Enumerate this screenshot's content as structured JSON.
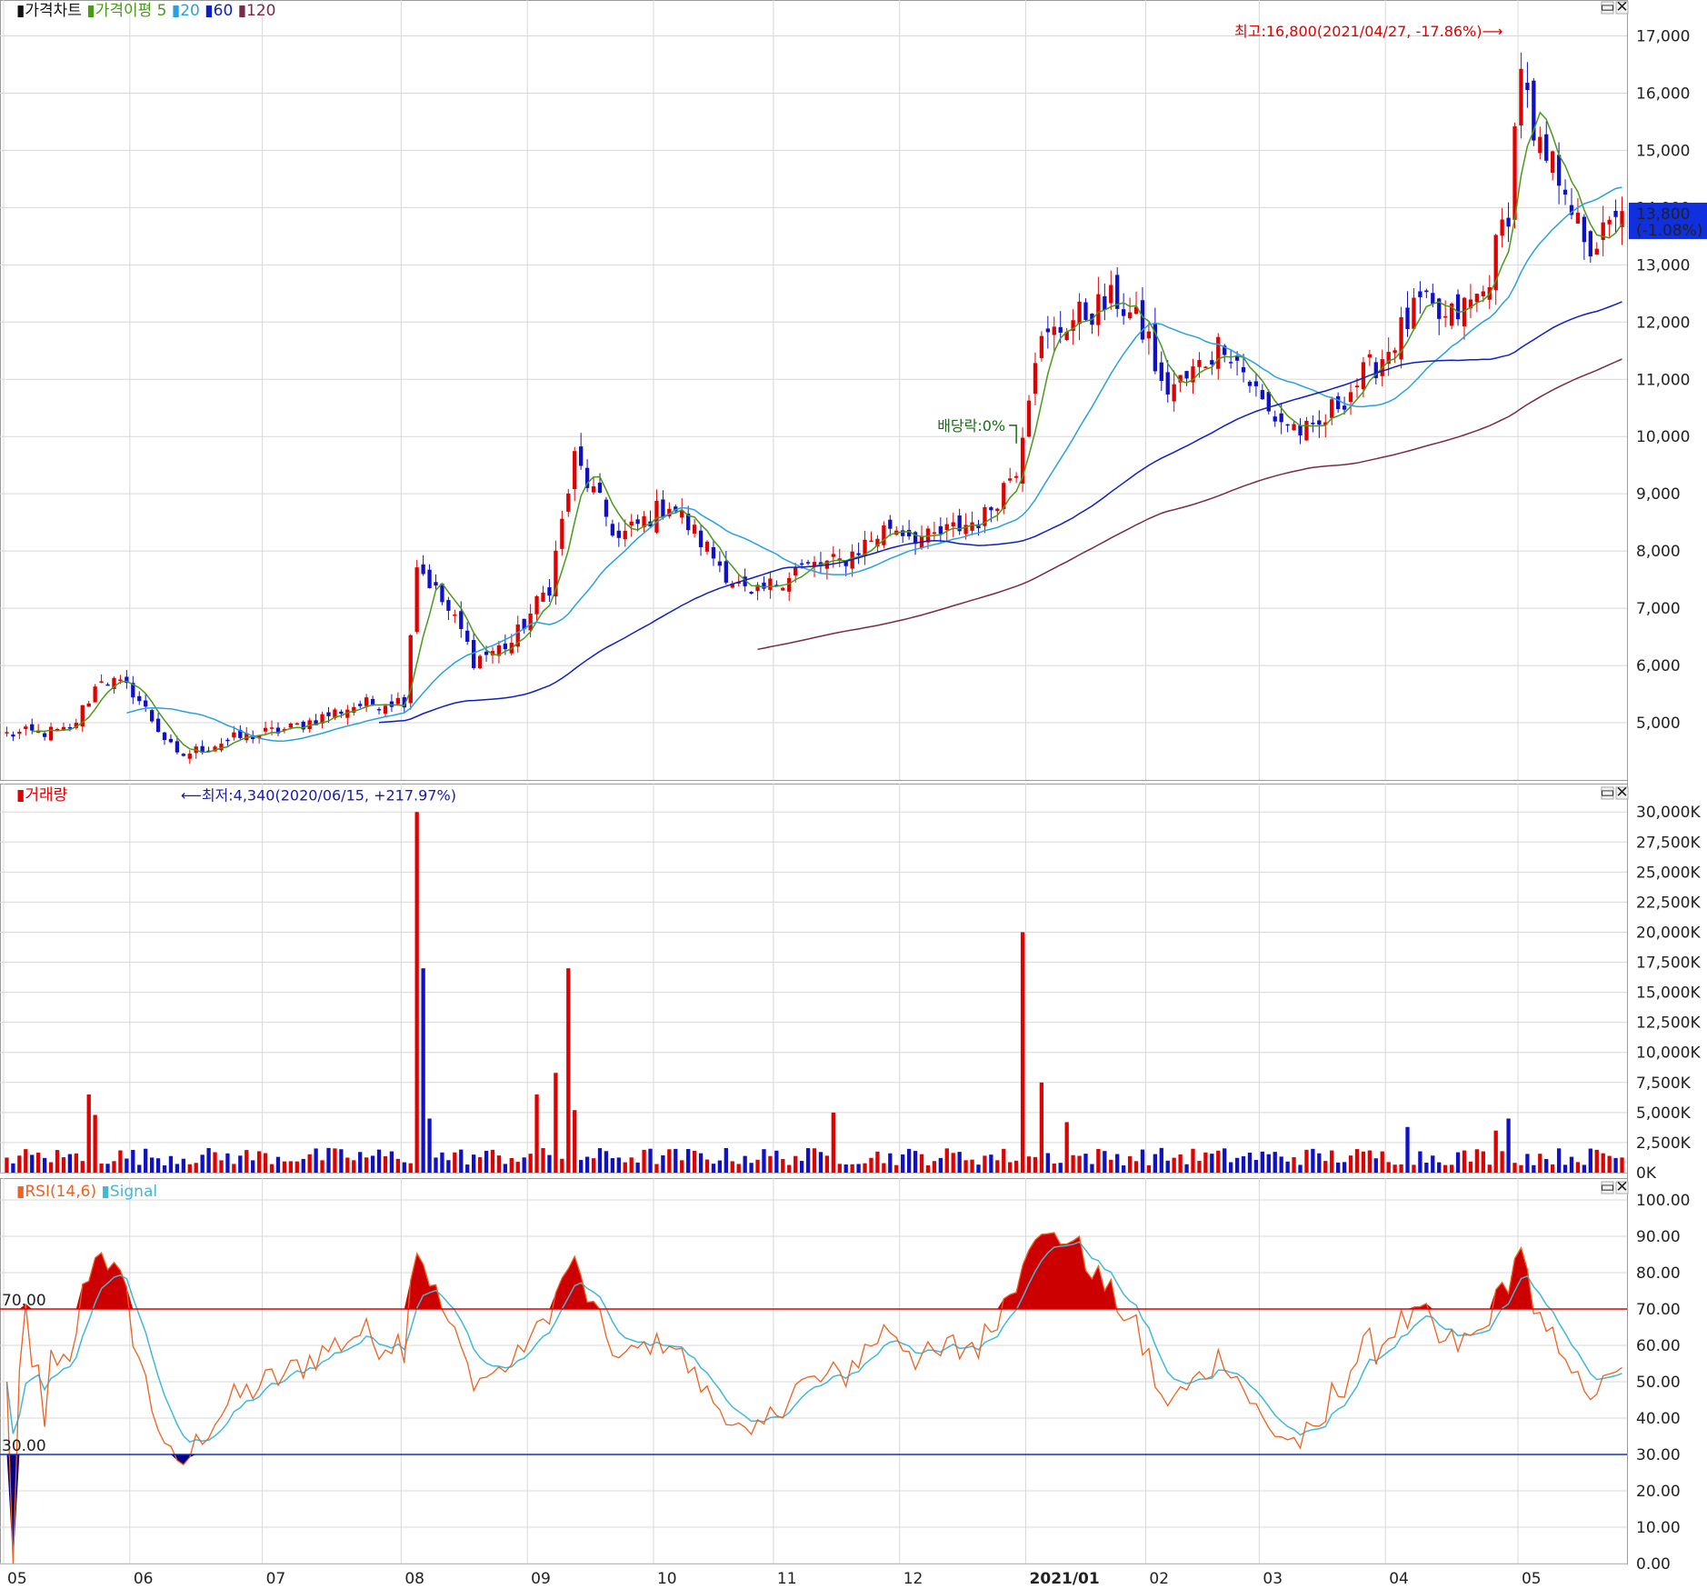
{
  "colors": {
    "up": "#e00000",
    "down": "#1010c8",
    "ma5": "#4a9a1a",
    "ma20": "#2aa0e0",
    "ma60": "#1020c0",
    "ma120": "#7a2a4a",
    "grid": "#d8d8d8",
    "rsi": "#f06020",
    "signal": "#40b8d8",
    "over": "#cc0000",
    "under": "#000080",
    "badge": "#1030e0"
  },
  "legend": {
    "price": {
      "marker": "▮",
      "label": "가격차트",
      "ma_label": "가격이평",
      "ma_periods": [
        "5",
        "20",
        "60",
        "120"
      ]
    },
    "volume": {
      "marker": "▮",
      "label": "거래량"
    },
    "rsi": {
      "marker": "▮",
      "label": "RSI(14,6)",
      "signal_label": "Signal"
    }
  },
  "window_icons": [
    "▭",
    "✕"
  ],
  "annotations": {
    "high": "최고:16,800(2021/04/27, -17.86%)⟶",
    "low": "⟵최저:4,340(2020/06/15, +217.97%)",
    "dividend": "배당락:0%"
  },
  "current_badge": {
    "price": "13,800",
    "change": "(-1.08%)"
  },
  "rsi_levels": {
    "upper": "70.00",
    "lower": "30.00"
  },
  "chart_data": [
    {
      "type": "candlestick",
      "panel": "price",
      "ylim": [
        4000,
        17500
      ],
      "yticks": [
        "5,000",
        "6,000",
        "7,000",
        "8,000",
        "9,000",
        "10,000",
        "11,000",
        "12,000",
        "13,000",
        "14,000",
        "15,000",
        "16,000",
        "17,000"
      ],
      "ytick_values": [
        5000,
        6000,
        7000,
        8000,
        9000,
        10000,
        11000,
        12000,
        13000,
        14000,
        15000,
        16000,
        17000
      ],
      "x_labels": [
        "05",
        "06",
        "07",
        "08",
        "09",
        "10",
        "11",
        "12",
        "2021/01",
        "02",
        "03",
        "04",
        "05"
      ],
      "x_label_index": [
        0,
        20,
        41,
        63,
        83,
        103,
        122,
        142,
        162,
        181,
        199,
        219,
        240
      ],
      "n_days": 257,
      "price_path": [
        [
          0,
          4800
        ],
        [
          10,
          4850
        ],
        [
          15,
          5800
        ],
        [
          20,
          5550
        ],
        [
          27,
          4400
        ],
        [
          35,
          4700
        ],
        [
          45,
          4900
        ],
        [
          55,
          5300
        ],
        [
          63,
          5400
        ],
        [
          65,
          7800
        ],
        [
          72,
          6600
        ],
        [
          74,
          6100
        ],
        [
          80,
          6400
        ],
        [
          86,
          7400
        ],
        [
          90,
          9600
        ],
        [
          97,
          8200
        ],
        [
          105,
          8850
        ],
        [
          115,
          7500
        ],
        [
          118,
          7150
        ],
        [
          125,
          7700
        ],
        [
          132,
          7800
        ],
        [
          140,
          8450
        ],
        [
          146,
          8200
        ],
        [
          155,
          8600
        ],
        [
          160,
          9500
        ],
        [
          163,
          11500
        ],
        [
          168,
          12000
        ],
        [
          176,
          12400
        ],
        [
          181,
          11700
        ],
        [
          183,
          10800
        ],
        [
          187,
          11000
        ],
        [
          193,
          11700
        ],
        [
          200,
          10400
        ],
        [
          207,
          10000
        ],
        [
          211,
          10600
        ],
        [
          218,
          11400
        ],
        [
          224,
          12300
        ],
        [
          228,
          12000
        ],
        [
          234,
          12500
        ],
        [
          238,
          14000
        ],
        [
          240,
          16600
        ],
        [
          242,
          15000
        ],
        [
          247,
          14500
        ],
        [
          250,
          13200
        ],
        [
          253,
          13500
        ],
        [
          256,
          13800
        ]
      ],
      "high": {
        "value": 16800,
        "date": "2021/04/27",
        "change_pct": -17.86
      },
      "low": {
        "value": 4340,
        "date": "2020/06/15",
        "change_pct": 217.97
      },
      "last": {
        "value": 13800,
        "change_pct": -1.08
      },
      "moving_averages": [
        "5",
        "20",
        "60",
        "120"
      ]
    },
    {
      "type": "bar",
      "panel": "volume",
      "ylim": [
        0,
        31000000
      ],
      "yticks": [
        "0K",
        "2,500K",
        "5,000K",
        "7,500K",
        "10,000K",
        "12,500K",
        "15,000K",
        "17,500K",
        "20,000K",
        "22,500K",
        "25,000K",
        "27,500K",
        "30,000K"
      ],
      "ytick_values": [
        0,
        2500000,
        5000000,
        7500000,
        10000000,
        12500000,
        15000000,
        17500000,
        20000000,
        22500000,
        25000000,
        27500000,
        30000000
      ],
      "spikes": [
        [
          13,
          6500000
        ],
        [
          14,
          4800000
        ],
        [
          65,
          30000000
        ],
        [
          66,
          17000000
        ],
        [
          67,
          4500000
        ],
        [
          84,
          6500000
        ],
        [
          87,
          8300000
        ],
        [
          89,
          17000000
        ],
        [
          90,
          5200000
        ],
        [
          131,
          5000000
        ],
        [
          161,
          20000000
        ],
        [
          164,
          7500000
        ],
        [
          168,
          4200000
        ],
        [
          222,
          3800000
        ],
        [
          238,
          4500000
        ],
        [
          236,
          3500000
        ]
      ]
    },
    {
      "type": "line",
      "panel": "rsi",
      "ylim": [
        0,
        105
      ],
      "yticks": [
        "0.00",
        "10.00",
        "20.00",
        "30.00",
        "40.00",
        "50.00",
        "60.00",
        "70.00",
        "80.00",
        "90.00",
        "100.00"
      ],
      "ytick_values": [
        0,
        10,
        20,
        30,
        40,
        50,
        60,
        70,
        80,
        90,
        100
      ],
      "levels": [
        70,
        30
      ],
      "series": [
        {
          "name": "RSI(14,6)"
        },
        {
          "name": "Signal"
        }
      ]
    }
  ]
}
